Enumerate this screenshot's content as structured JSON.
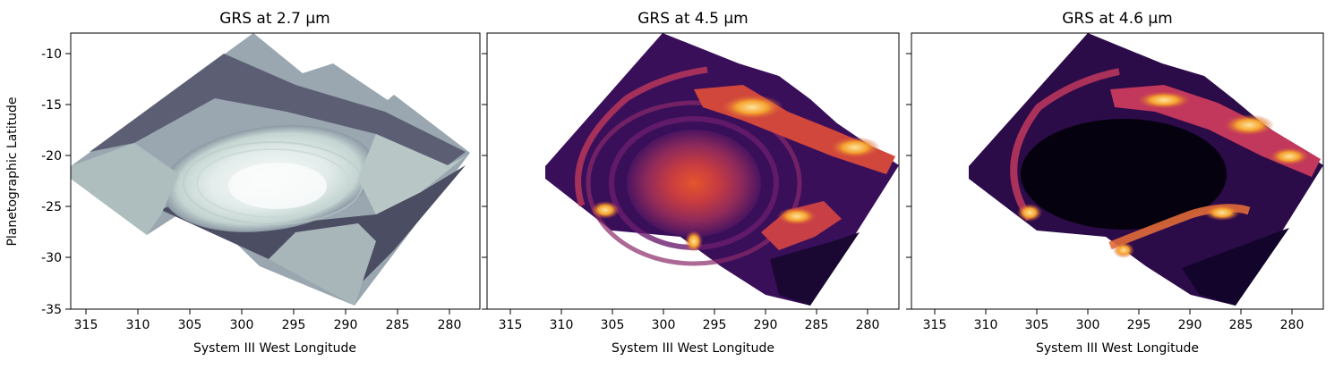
{
  "chart_data": [
    {
      "type": "heatmap",
      "title": "GRS at 2.7 µm",
      "xlabel": "System III West Longitude",
      "ylabel": "Planetographic Latitude",
      "xlim": [
        317,
        278
      ],
      "ylim": [
        -35,
        -8
      ],
      "x_ticks": [
        315,
        310,
        305,
        300,
        295,
        290,
        285,
        280
      ],
      "y_ticks": [
        -10,
        -15,
        -20,
        -25,
        -30,
        -35
      ],
      "colormap": "bone",
      "colors": [
        "#1e1e2c",
        "#5a5a72",
        "#8f99a6",
        "#bccfcc",
        "#e2ecea",
        "#f6f9f8"
      ]
    },
    {
      "type": "heatmap",
      "title": "GRS at 4.5 µm",
      "xlabel": "System III West Longitude",
      "ylabel": "",
      "xlim": [
        317,
        278
      ],
      "ylim": [
        -35,
        -8
      ],
      "x_ticks": [
        315,
        310,
        305,
        300,
        295,
        290,
        285,
        280
      ],
      "y_ticks": [
        -10,
        -15,
        -20,
        -25,
        -30,
        -35
      ],
      "colormap": "inferno",
      "colors": [
        "#0d0620",
        "#3a0f5a",
        "#6b1d6e",
        "#b8365a",
        "#f0812a",
        "#fde49c"
      ]
    },
    {
      "type": "heatmap",
      "title": "GRS at 4.6 µm",
      "xlabel": "System III West Longitude",
      "ylabel": "",
      "xlim": [
        317,
        278
      ],
      "ylim": [
        -35,
        -8
      ],
      "x_ticks": [
        315,
        310,
        305,
        300,
        295,
        290,
        285,
        280
      ],
      "y_ticks": [
        -10,
        -15,
        -20,
        -25,
        -30,
        -35
      ],
      "colormap": "inferno",
      "colors": [
        "#05010c",
        "#2c0b49",
        "#6a1a6c",
        "#c1385c",
        "#f7982e",
        "#fde7a1"
      ]
    }
  ]
}
